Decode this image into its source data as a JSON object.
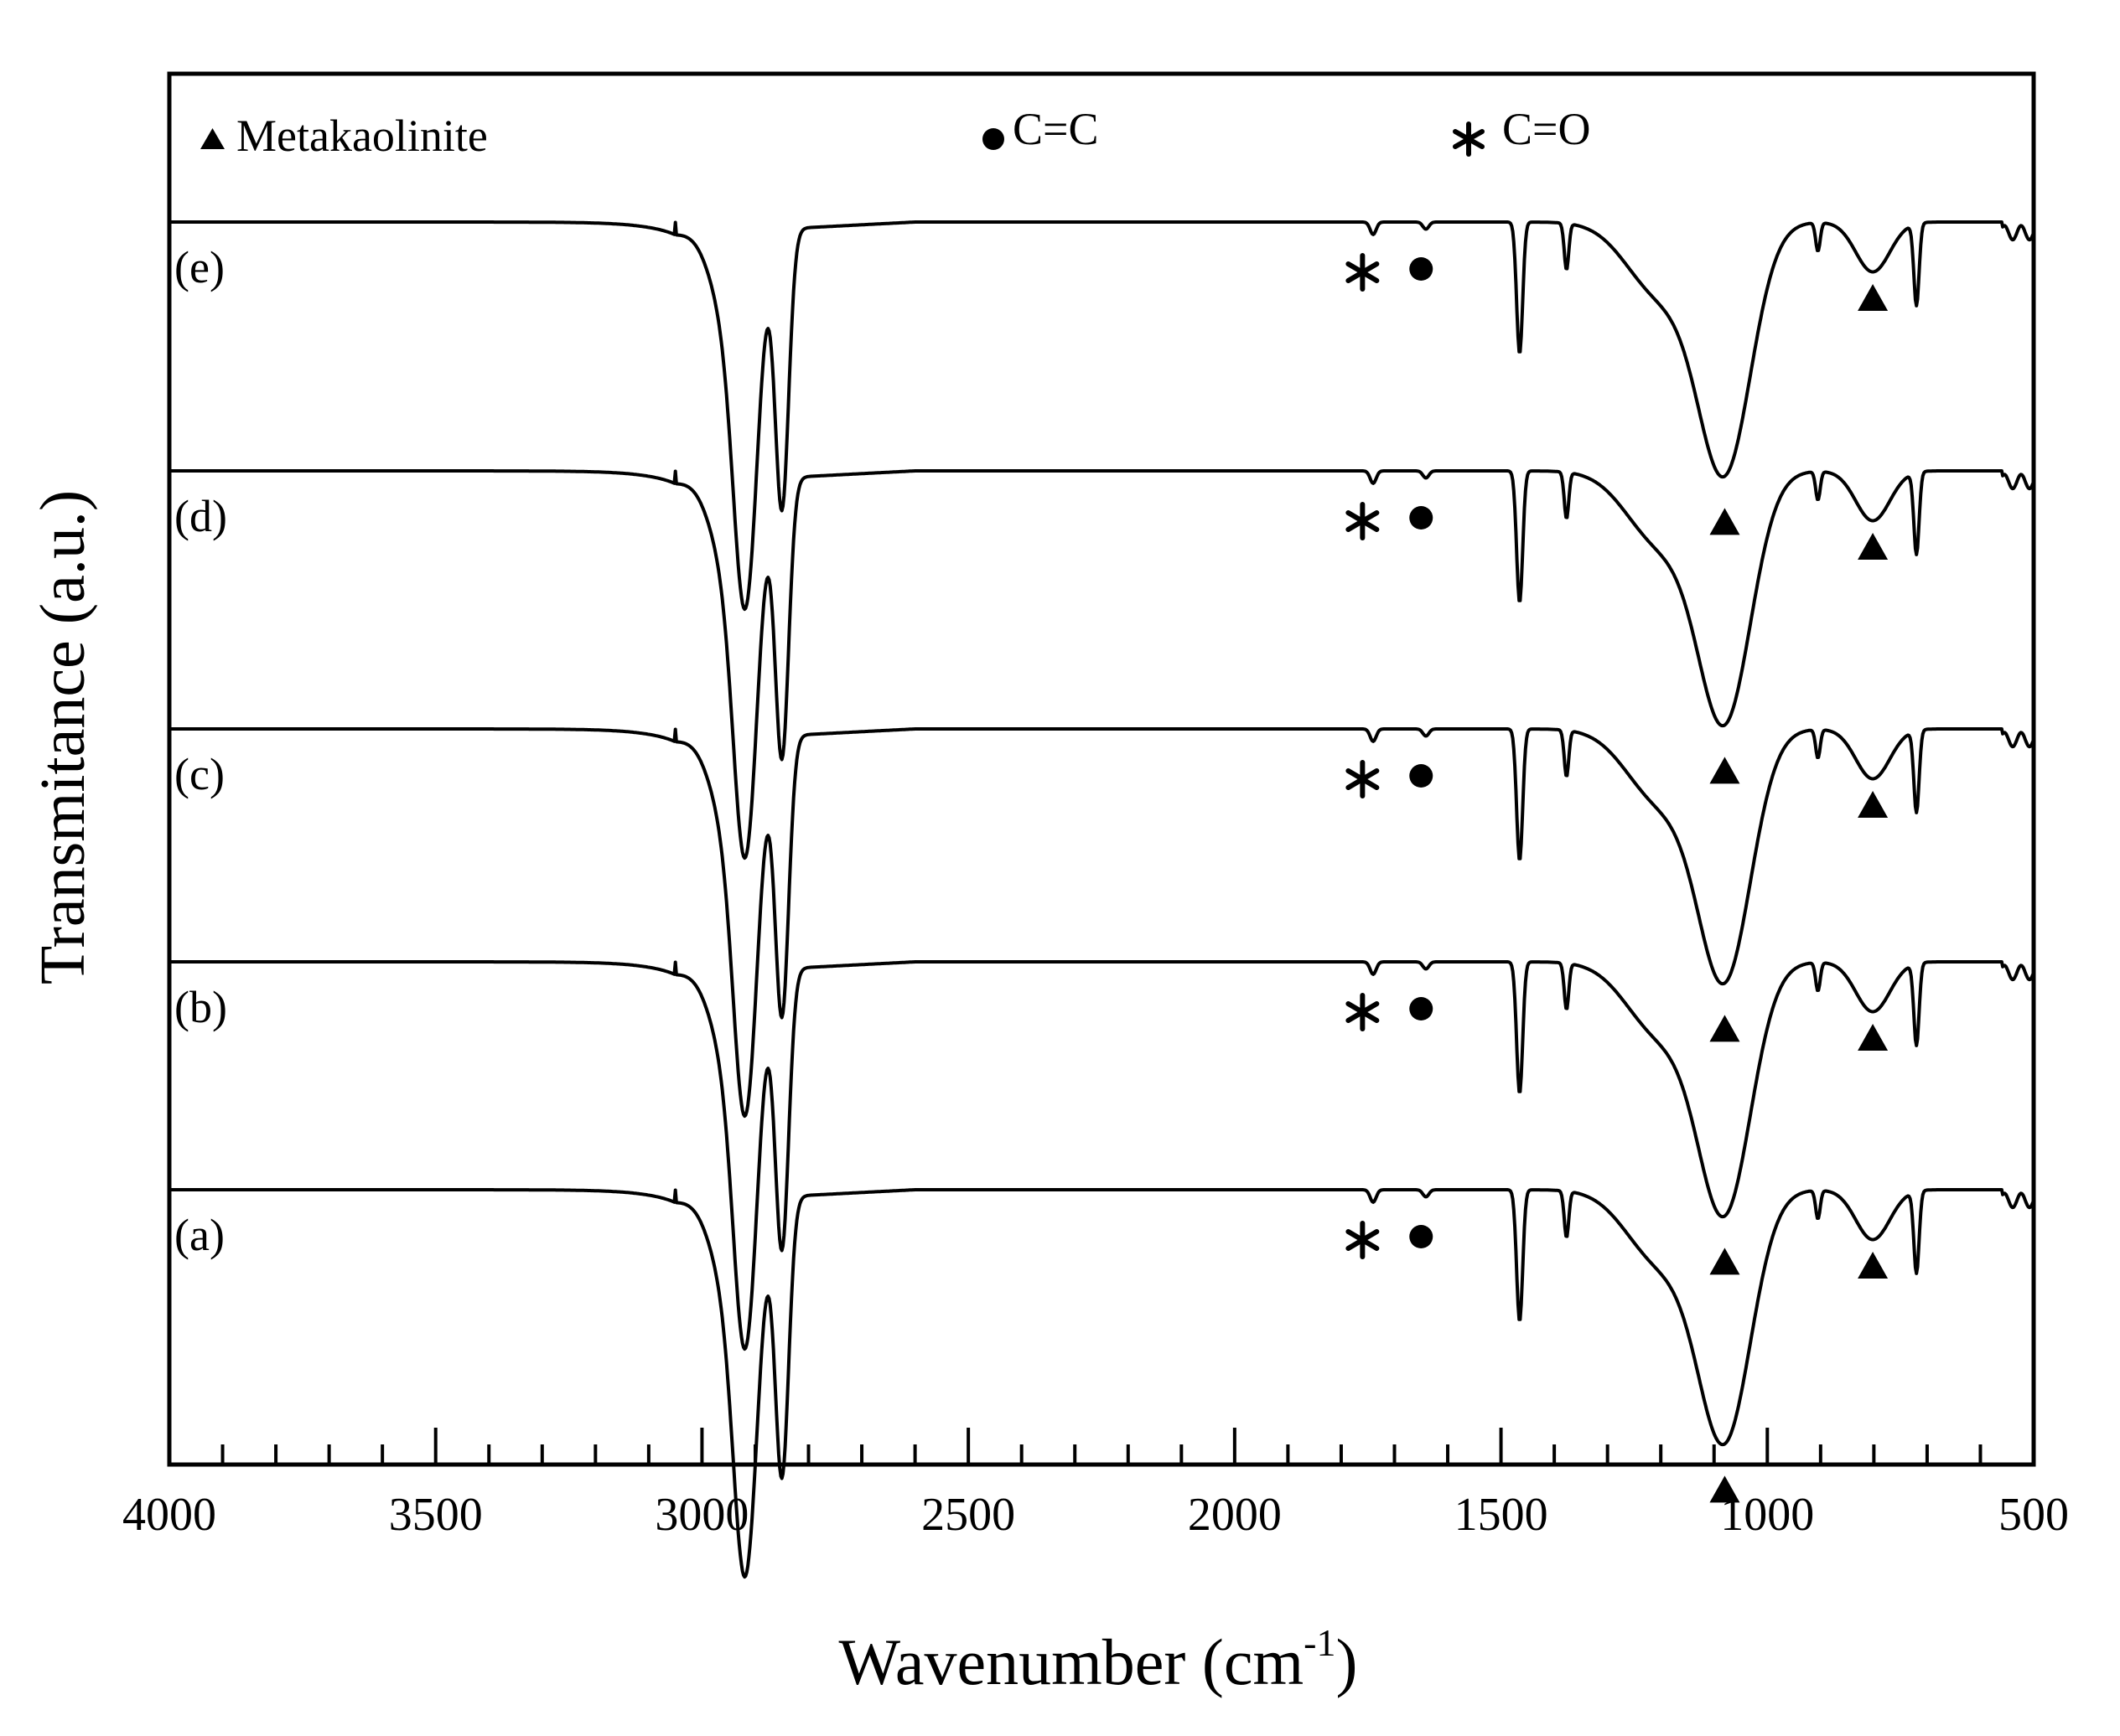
{
  "chart_data": {
    "type": "line",
    "title": "",
    "xlabel": "Wavenumber (cm",
    "xlabel_sup": "-1",
    "xlabel_close": ")",
    "ylabel": "Transmitance (a.u.)",
    "xlim": [
      4000,
      500
    ],
    "x_reversed": true,
    "xticks": [
      4000,
      3500,
      3000,
      2500,
      2000,
      1500,
      1000,
      500
    ],
    "xtick_labels": [
      "4000",
      "3500",
      "3000",
      "2500",
      "2000",
      "1500",
      "1000",
      "500"
    ],
    "minor_tick_step": 100,
    "grid": false,
    "yticks_shown": false,
    "legend": {
      "placement": "top",
      "entries": [
        {
          "symbol": "triangle",
          "label": "Metakaolinite"
        },
        {
          "symbol": "circle",
          "label": "C=C"
        },
        {
          "symbol": "asterisk",
          "label": "C=O"
        }
      ]
    },
    "peaks_cm1": {
      "CH2_asym": 2918,
      "CH2_sym": 2850,
      "C_O": 1740,
      "C_C": 1641,
      "CH2_bend": 1465,
      "CH3_bend": 1377,
      "Si_O_metakaolinite": 1080,
      "Al_O_metakaolinite": 802,
      "CH2_rock": 720
    },
    "series": [
      {
        "name": "(a)",
        "label": "(a)",
        "offset": 0
      },
      {
        "name": "(b)",
        "label": "(b)",
        "offset": 1
      },
      {
        "name": "(c)",
        "label": "(c)",
        "offset": 2
      },
      {
        "name": "(d)",
        "label": "(d)",
        "offset": 3
      },
      {
        "name": "(e)",
        "label": "(e)",
        "offset": 4
      }
    ]
  }
}
